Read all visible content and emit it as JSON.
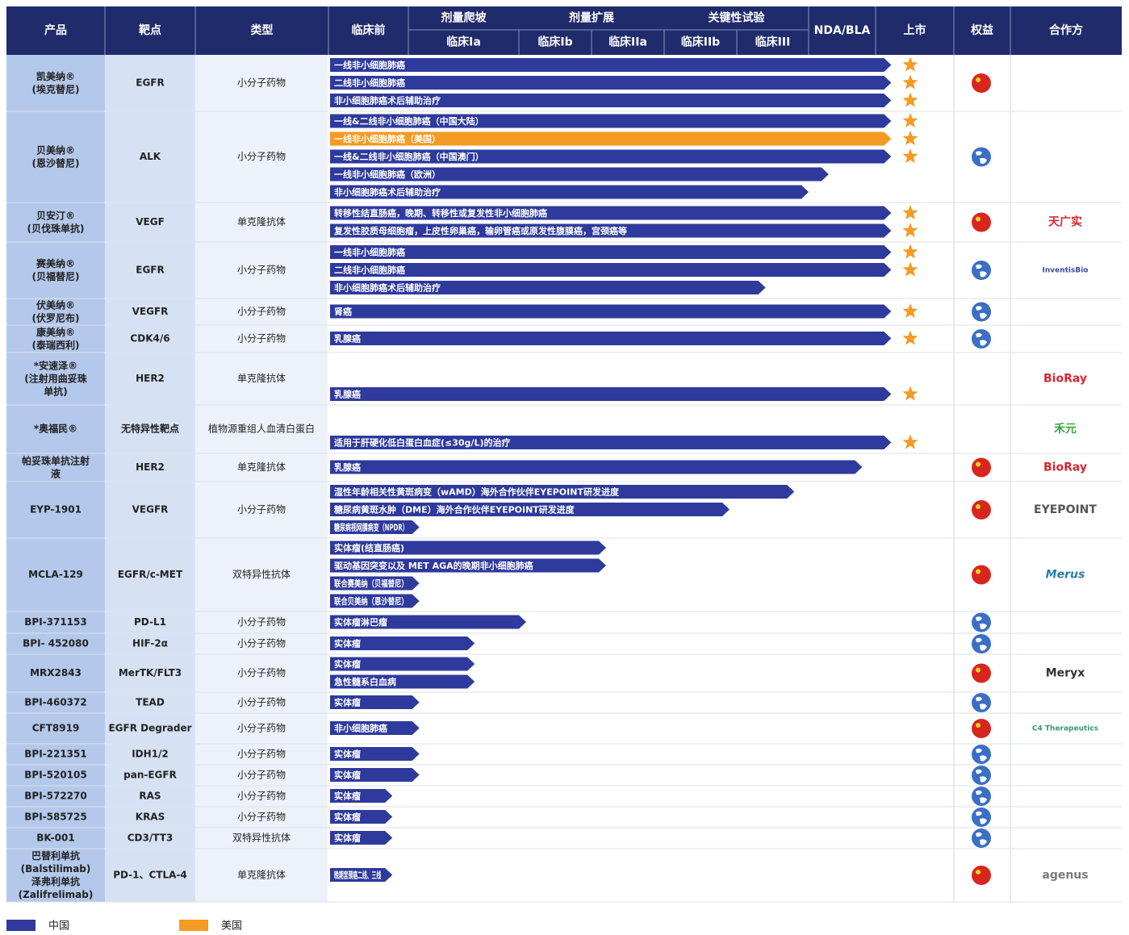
{
  "header": {
    "columns": [
      "产品",
      "靶点",
      "类型",
      "临床前",
      "临床Ia",
      "临床Ib",
      "临床IIa",
      "临床IIb",
      "临床III",
      "NDA/BLA",
      "上市",
      "权益",
      "合作方"
    ],
    "groups": [
      "剂量爬坡",
      "剂量扩展",
      "关键性试验"
    ]
  },
  "rows": [
    {
      "product": "凯美纳®\n(埃克替尼)",
      "target": "EGFR",
      "type": "小分子药物",
      "rights": "flag",
      "indications": [
        {
          "name": "一线非小细胞肺癌",
          "color": "#2e3a9c",
          "progress": 7.2,
          "launched": true
        },
        {
          "name": "二线非小细胞肺癌",
          "color": "#2e3a9c",
          "progress": 7.2,
          "launched": true
        },
        {
          "name": "非小细胞肺癌术后辅助治疗",
          "color": "#2e3a9c",
          "progress": 7.2,
          "launched": true
        }
      ]
    },
    {
      "product": "贝美纳®\n(恩沙替尼)",
      "target": "ALK",
      "type": "小分子药物",
      "rights": "globe",
      "indications": [
        {
          "name": "一线&二线非小细胞肺癌（中国大陆）",
          "color": "#2e3a9c",
          "progress": 7.2,
          "launched": true
        },
        {
          "name": "一线非小细胞肺癌（美国）",
          "color": "#f59a23",
          "progress": 7.2,
          "launched": true
        },
        {
          "name": "一线&二线非小细胞肺癌（中国澳门）",
          "color": "#2e3a9c",
          "progress": 7.2,
          "launched": true
        },
        {
          "name": "一线非小细胞肺癌（欧洲）",
          "color": "#2e3a9c",
          "progress": 6.3,
          "launched": false
        },
        {
          "name": "非小细胞肺癌术后辅助治疗",
          "color": "#2e3a9c",
          "progress": 6.0,
          "launched": false
        }
      ]
    },
    {
      "product": "贝安汀®\n(贝伐珠单抗)",
      "target": "VEGF",
      "type": "单克隆抗体",
      "rights": "flag",
      "partner": "天广实",
      "partner_color": "#d7262e",
      "indications": [
        {
          "name": "转移性结直肠癌，晚期、转移性或复发性非小细胞肺癌",
          "color": "#2e3a9c",
          "progress": 7.2,
          "launched": true
        },
        {
          "name": "复发性胶质母细胞瘤，上皮性卵巢癌，输卵管癌或原发性腹膜癌，宫颈癌等",
          "color": "#2e3a9c",
          "progress": 7.2,
          "launched": true
        }
      ]
    },
    {
      "product": "赛美纳®\n(贝福替尼)",
      "target": "EGFR",
      "type": "小分子药物",
      "rights": "globe",
      "partner": "InventisBio",
      "partner_color": "#3a4aa0",
      "indications": [
        {
          "name": "一线非小细胞肺癌",
          "color": "#2e3a9c",
          "progress": 7.2,
          "launched": true
        },
        {
          "name": "二线非小细胞肺癌",
          "color": "#2e3a9c",
          "progress": 7.2,
          "launched": true
        },
        {
          "name": "非小细胞肺癌术后辅助治疗",
          "color": "#2e3a9c",
          "progress": 5.4,
          "launched": false
        }
      ]
    },
    {
      "product": "伏美纳®\n(伏罗尼布)",
      "target": "VEGFR",
      "type": "小分子药物",
      "rights": "globe",
      "indications": [
        {
          "name": "肾癌",
          "color": "#2e3a9c",
          "progress": 7.2,
          "launched": true
        }
      ]
    },
    {
      "product": "康美纳®\n(泰瑞西利)",
      "target": "CDK4/6",
      "type": "小分子药物",
      "rights": "globe",
      "indications": [
        {
          "name": "乳腺癌",
          "color": "#2e3a9c",
          "progress": 7.2,
          "launched": true
        }
      ]
    },
    {
      "product": "*安速泽®\n(注射用曲妥珠\n单抗)",
      "target": "HER2",
      "type": "单克隆抗体",
      "partner": "BioRay",
      "partner_color": "#d7262e",
      "indications": [
        {
          "name": "乳腺癌",
          "color": "#2e3a9c",
          "progress": 7.2,
          "launched": true
        }
      ]
    },
    {
      "product": "*奥福民®",
      "target": "无特异性靶点",
      "type": "植物源重组人血清白蛋白",
      "partner": "禾元",
      "partner_color": "#3aa63a",
      "indications": [
        {
          "name": "适用于肝硬化低白蛋白血症(≤30g/L)的治疗",
          "color": "#2e3a9c",
          "progress": 7.2,
          "launched": true
        }
      ]
    },
    {
      "product": "帕妥珠单抗注射\n液",
      "target": "HER2",
      "type": "单克隆抗体",
      "rights": "flag",
      "partner": "BioRay",
      "partner_color": "#d7262e",
      "indications": [
        {
          "name": "乳腺癌",
          "color": "#2e3a9c",
          "progress": 6.8,
          "launched": false
        }
      ]
    },
    {
      "product": "EYP-1901",
      "target": "VEGFR",
      "type": "小分子药物",
      "rights": "flag",
      "partner": "EYEPOINT",
      "partner_color": "#555",
      "indications": [
        {
          "name": "湿性年龄相关性黄斑病变（wAMD）海外合作伙伴EYEPOINT研发进度",
          "color": "#2e3a9c",
          "progress": 5.8,
          "launched": false
        },
        {
          "name": "糖尿病黄斑水肿（DME）海外合作伙伴EYEPOINT研发进度",
          "color": "#2e3a9c",
          "progress": 4.9,
          "launched": false
        },
        {
          "name": "糖尿病视网膜病变（NPDR）",
          "color": "#2e3a9c",
          "progress": 1.1,
          "launched": false
        }
      ]
    },
    {
      "product": "MCLA-129",
      "target": "EGFR/c-MET",
      "type": "双特异性抗体",
      "rights": "flag",
      "partner": "Merus",
      "partner_color": "#2a7fa8",
      "indications": [
        {
          "name": "实体瘤(结直肠癌)",
          "color": "#2e3a9c",
          "progress": 3.2,
          "launched": false
        },
        {
          "name": "驱动基因突变以及 MET AGA的晚期非小细胞肺癌",
          "color": "#2e3a9c",
          "progress": 3.2,
          "launched": false
        },
        {
          "name": "联合赛美纳（贝福替尼）",
          "color": "#2e3a9c",
          "progress": 1.1,
          "launched": false
        },
        {
          "name": "联合贝美纳（恩沙替尼）",
          "color": "#2e3a9c",
          "progress": 1.1,
          "launched": false
        }
      ]
    },
    {
      "product": "BPI-371153",
      "target": "PD-L1",
      "type": "小分子药物",
      "rights": "globe",
      "indications": [
        {
          "name": "实体瘤淋巴瘤",
          "color": "#2e3a9c",
          "progress": 2.1,
          "launched": false
        }
      ]
    },
    {
      "product": "BPI- 452080",
      "target": "HIF-2α",
      "type": "小分子药物",
      "rights": "globe",
      "indications": [
        {
          "name": "实体瘤",
          "color": "#2e3a9c",
          "progress": 1.6,
          "launched": false
        }
      ]
    },
    {
      "product": "MRX2843",
      "target": "MerTK/FLT3",
      "type": "小分子药物",
      "rights": "flag",
      "partner": "Meryx",
      "partner_color": "#333",
      "indications": [
        {
          "name": "实体瘤",
          "color": "#2e3a9c",
          "progress": 1.6,
          "launched": false
        },
        {
          "name": "急性髓系白血病",
          "color": "#2e3a9c",
          "progress": 1.6,
          "launched": false
        }
      ]
    },
    {
      "product": "BPI-460372",
      "target": "TEAD",
      "type": "小分子药物",
      "rights": "globe",
      "indications": [
        {
          "name": "实体瘤",
          "color": "#2e3a9c",
          "progress": 1.1,
          "launched": false
        }
      ]
    },
    {
      "product": "CFT8919",
      "target": "EGFR Degrader",
      "type": "小分子药物",
      "rights": "flag",
      "partner": "C4 Therapeutics",
      "partner_color": "#2f9a6a",
      "indications": [
        {
          "name": "非小细胞肺癌",
          "color": "#2e3a9c",
          "progress": 1.1,
          "launched": false
        }
      ]
    },
    {
      "product": "BPI-221351",
      "target": "IDH1/2",
      "type": "小分子药物",
      "rights": "globe",
      "indications": [
        {
          "name": "实体瘤",
          "color": "#2e3a9c",
          "progress": 1.1,
          "launched": false
        }
      ]
    },
    {
      "product": "BPI-520105",
      "target": "pan-EGFR",
      "type": "小分子药物",
      "rights": "globe",
      "indications": [
        {
          "name": "实体瘤",
          "color": "#2e3a9c",
          "progress": 1.1,
          "launched": false
        }
      ]
    },
    {
      "product": "BPI-572270",
      "target": "RAS",
      "type": "小分子药物",
      "rights": "globe",
      "indications": [
        {
          "name": "实体瘤",
          "color": "#2e3a9c",
          "progress": 0.8,
          "launched": false
        }
      ]
    },
    {
      "product": "BPI-585725",
      "target": "KRAS",
      "type": "小分子药物",
      "rights": "globe",
      "indications": [
        {
          "name": "实体瘤",
          "color": "#2e3a9c",
          "progress": 0.8,
          "launched": false
        }
      ]
    },
    {
      "product": "BK-001",
      "target": "CD3/TT3",
      "type": "双特异性抗体",
      "rights": "globe",
      "indications": [
        {
          "name": "实体瘤",
          "color": "#2e3a9c",
          "progress": 0.8,
          "launched": false
        }
      ]
    },
    {
      "product": "巴替利单抗\n(Balstilimab)\n泽弗利单抗\n(Zalifrelimab)",
      "target": "PD-1、CTLA-4",
      "type": "单克隆抗体",
      "rights": "flag",
      "partner": "agenus",
      "partner_color": "#7a7a7a",
      "indications": [
        {
          "name": "晚期宫颈癌二线、三线",
          "color": "#2e3a9c",
          "progress": 0.8,
          "launched": false
        }
      ]
    }
  ],
  "legend": [
    {
      "label": "中国",
      "color": "#2e3a9c"
    },
    {
      "label": "美国",
      "color": "#f59a23"
    }
  ]
}
